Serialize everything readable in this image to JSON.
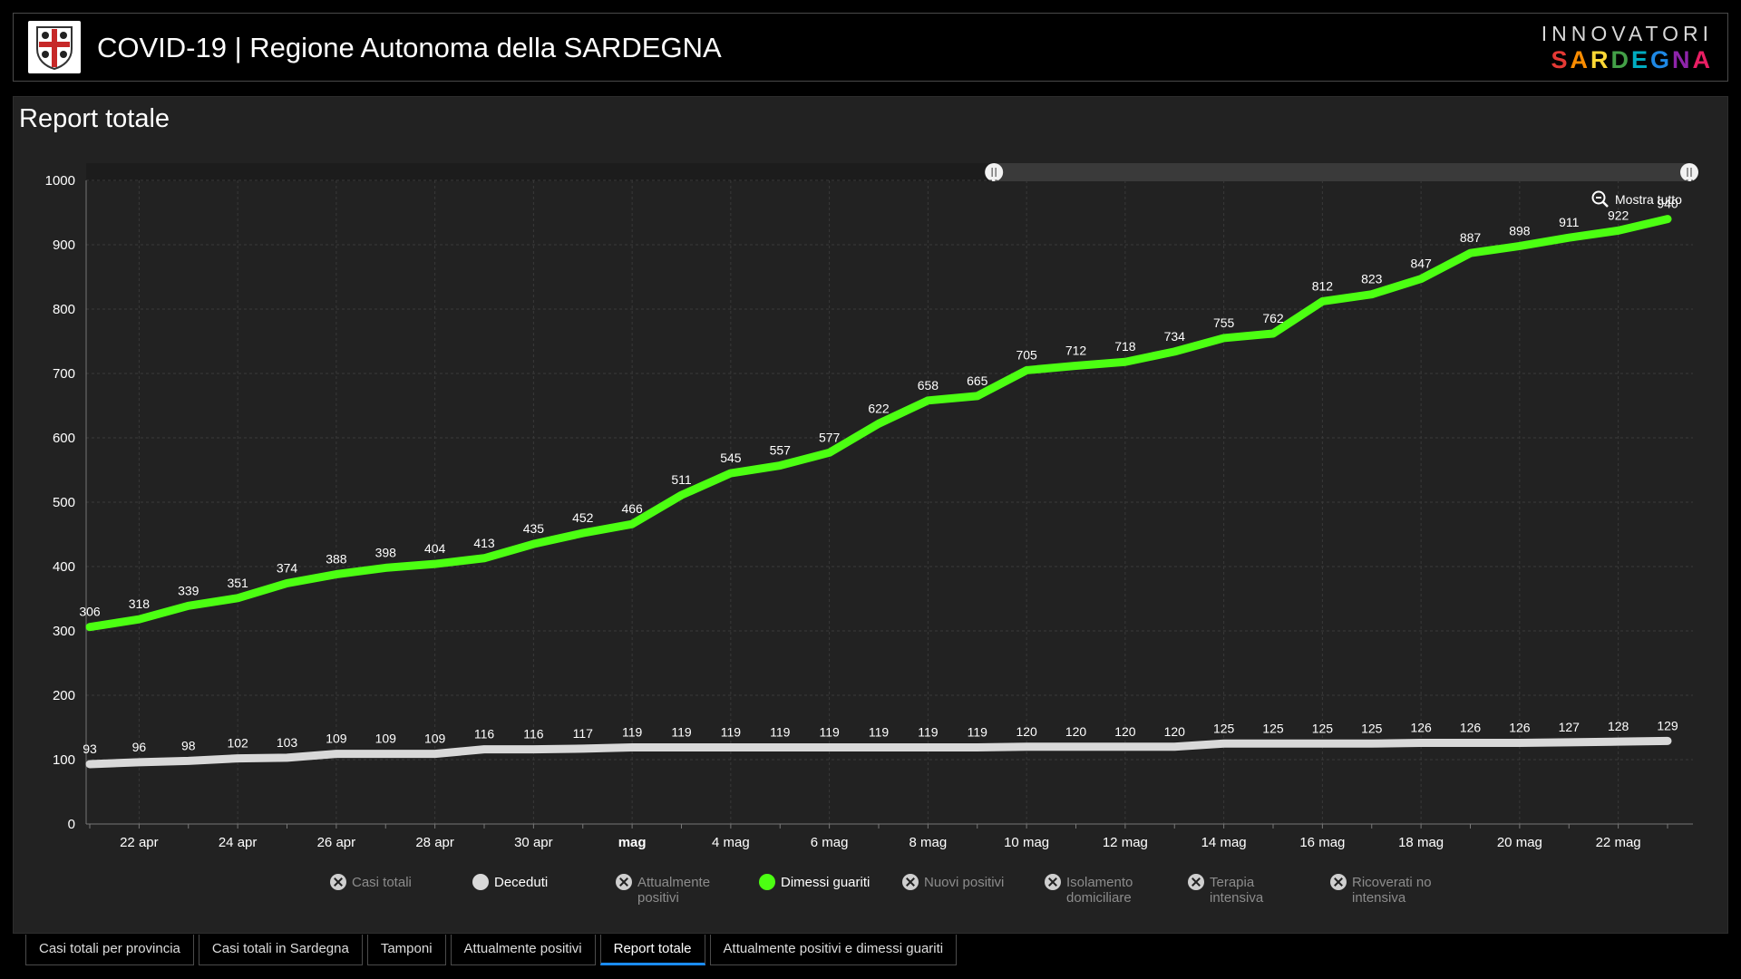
{
  "header": {
    "title": "COVID-19 | Regione Autonoma della SARDEGNA",
    "logo_icon": "sardinia-coat-of-arms-icon",
    "brand_top": "INNOVATORI",
    "brand_bottom": "SARDEGNA",
    "brand_colors": [
      "#e53935",
      "#fb8c00",
      "#fdd835",
      "#43a047",
      "#00acc1",
      "#1e88e5",
      "#8e24aa",
      "#e91e63"
    ]
  },
  "panel": {
    "title": "Report totale",
    "zoom_label": "Mostra tutto",
    "zoom_icon": "zoom-out-icon"
  },
  "chart_data": {
    "type": "line",
    "ylim": [
      0,
      1000
    ],
    "yticks": [
      0,
      100,
      200,
      300,
      400,
      500,
      600,
      700,
      800,
      900,
      1000
    ],
    "grid": true,
    "x": [
      "21 apr",
      "22 apr",
      "23 apr",
      "24 apr",
      "25 apr",
      "26 apr",
      "27 apr",
      "28 apr",
      "29 apr",
      "30 apr",
      "1 mag",
      "2 mag",
      "3 mag",
      "4 mag",
      "5 mag",
      "6 mag",
      "7 mag",
      "8 mag",
      "9 mag",
      "10 mag",
      "11 mag",
      "12 mag",
      "13 mag",
      "14 mag",
      "15 mag",
      "16 mag",
      "17 mag",
      "18 mag",
      "19 mag",
      "20 mag",
      "21 mag",
      "22 mag",
      "23 mag"
    ],
    "xtick_labels": [
      {
        "label": "22 apr",
        "index": 1
      },
      {
        "label": "24 apr",
        "index": 3
      },
      {
        "label": "26 apr",
        "index": 5
      },
      {
        "label": "28 apr",
        "index": 7
      },
      {
        "label": "30 apr",
        "index": 9
      },
      {
        "label": "mag",
        "index": 11,
        "bold": true
      },
      {
        "label": "4 mag",
        "index": 13
      },
      {
        "label": "6 mag",
        "index": 15
      },
      {
        "label": "8 mag",
        "index": 17
      },
      {
        "label": "10 mag",
        "index": 19
      },
      {
        "label": "12 mag",
        "index": 21
      },
      {
        "label": "14 mag",
        "index": 23
      },
      {
        "label": "16 mag",
        "index": 25
      },
      {
        "label": "18 mag",
        "index": 27
      },
      {
        "label": "20 mag",
        "index": 29
      },
      {
        "label": "22 mag",
        "index": 31
      }
    ],
    "series": [
      {
        "name": "Dimessi guariti",
        "color": "#4cff12",
        "values": [
          306,
          318,
          339,
          351,
          374,
          388,
          398,
          404,
          413,
          435,
          452,
          466,
          511,
          545,
          557,
          577,
          622,
          658,
          665,
          705,
          712,
          718,
          734,
          755,
          762,
          812,
          823,
          847,
          887,
          898,
          911,
          922,
          940
        ]
      },
      {
        "name": "Deceduti",
        "color": "#d9d9d9",
        "values": [
          93,
          96,
          98,
          102,
          103,
          109,
          109,
          109,
          116,
          116,
          117,
          119,
          119,
          119,
          119,
          119,
          119,
          119,
          119,
          120,
          120,
          120,
          120,
          125,
          125,
          125,
          125,
          126,
          126,
          126,
          127,
          128,
          129
        ]
      }
    ],
    "range_slider": {
      "start": 0.565,
      "end": 1.0
    }
  },
  "legend": [
    {
      "label": "Casi totali",
      "active": false
    },
    {
      "label": "Deceduti",
      "active": true,
      "color": "#d9d9d9"
    },
    {
      "label": "Attualmente positivi",
      "active": false
    },
    {
      "label": "Dimessi guariti",
      "active": true,
      "color": "#4cff12"
    },
    {
      "label": "Nuovi positivi",
      "active": false
    },
    {
      "label": "Isolamento domiciliare",
      "active": false
    },
    {
      "label": "Terapia intensiva",
      "active": false
    },
    {
      "label": "Ricoverati no intensiva",
      "active": false
    }
  ],
  "tabs": [
    {
      "label": "Casi totali per provincia",
      "active": false
    },
    {
      "label": "Casi totali in Sardegna",
      "active": false
    },
    {
      "label": "Tamponi",
      "active": false
    },
    {
      "label": "Attualmente positivi",
      "active": false
    },
    {
      "label": "Report totale",
      "active": true
    },
    {
      "label": "Attualmente positivi e dimessi guariti",
      "active": false
    }
  ]
}
